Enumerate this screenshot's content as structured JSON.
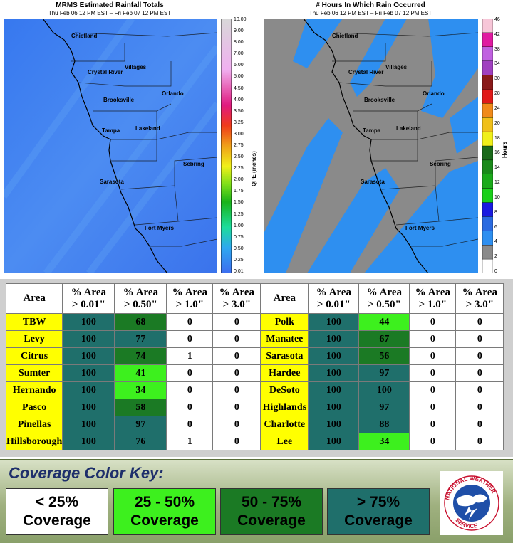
{
  "left_map": {
    "title": "MRMS Estimated Rainfall Totals",
    "subtitle": "Thu Feb 06 12 PM EST – Fri Feb 07 12 PM EST",
    "colorbar_label": "QPE (inches)",
    "colorbar_ticks": [
      "10.00",
      "9.00",
      "8.00",
      "7.00",
      "6.00",
      "5.00",
      "4.50",
      "4.00",
      "3.50",
      "3.25",
      "3.00",
      "2.75",
      "2.50",
      "2.25",
      "2.00",
      "1.75",
      "1.50",
      "1.25",
      "1.00",
      "0.75",
      "0.50",
      "0.25",
      "0.01"
    ],
    "cities": [
      "Chiefland",
      "Villages",
      "Crystal River",
      "Orlando",
      "Brooksville",
      "Tampa",
      "Lakeland",
      "Sebring",
      "Sarasota",
      "Fort Myers"
    ]
  },
  "right_map": {
    "title": "# Hours In Which Rain Occurred",
    "subtitle": "Thu Feb 06 12 PM EST – Fri Feb 07 12 PM EST",
    "colorbar_label": "Hours",
    "colorbar_ticks": [
      "46",
      "42",
      "38",
      "34",
      "30",
      "28",
      "24",
      "20",
      "18",
      "16",
      "14",
      "12",
      "10",
      "8",
      "6",
      "4",
      "2",
      "0"
    ],
    "cities": [
      "Chiefland",
      "Villages",
      "Crystal River",
      "Orlando",
      "Brooksville",
      "Tampa",
      "Lakeland",
      "Sebring",
      "Sarasota",
      "Fort Myers"
    ]
  },
  "chart_data": {
    "type": "table",
    "columns": [
      "Area",
      "% Area > 0.01\"",
      "% Area > 0.50\"",
      "% Area > 1.0\"",
      "% Area > 3.0\""
    ],
    "left_rows": [
      {
        "area": "TBW",
        "p001": 100,
        "p050": 68,
        "p10": 0,
        "p30": 0
      },
      {
        "area": "Levy",
        "p001": 100,
        "p050": 77,
        "p10": 0,
        "p30": 0
      },
      {
        "area": "Citrus",
        "p001": 100,
        "p050": 74,
        "p10": 1,
        "p30": 0
      },
      {
        "area": "Sumter",
        "p001": 100,
        "p050": 41,
        "p10": 0,
        "p30": 0
      },
      {
        "area": "Hernando",
        "p001": 100,
        "p050": 34,
        "p10": 0,
        "p30": 0
      },
      {
        "area": "Pasco",
        "p001": 100,
        "p050": 58,
        "p10": 0,
        "p30": 0
      },
      {
        "area": "Pinellas",
        "p001": 100,
        "p050": 97,
        "p10": 0,
        "p30": 0
      },
      {
        "area": "Hillsborough",
        "p001": 100,
        "p050": 76,
        "p10": 1,
        "p30": 0
      }
    ],
    "right_rows": [
      {
        "area": "Polk",
        "p001": 100,
        "p050": 44,
        "p10": 0,
        "p30": 0
      },
      {
        "area": "Manatee",
        "p001": 100,
        "p050": 67,
        "p10": 0,
        "p30": 0
      },
      {
        "area": "Sarasota",
        "p001": 100,
        "p050": 56,
        "p10": 0,
        "p30": 0
      },
      {
        "area": "Hardee",
        "p001": 100,
        "p050": 97,
        "p10": 0,
        "p30": 0
      },
      {
        "area": "DeSoto",
        "p001": 100,
        "p050": 100,
        "p10": 0,
        "p30": 0
      },
      {
        "area": "Highlands",
        "p001": 100,
        "p050": 97,
        "p10": 0,
        "p30": 0
      },
      {
        "area": "Charlotte",
        "p001": 100,
        "p050": 88,
        "p10": 0,
        "p30": 0
      },
      {
        "area": "Lee",
        "p001": 100,
        "p050": 34,
        "p10": 0,
        "p30": 0
      }
    ]
  },
  "table_headers": {
    "area": "Area",
    "pct_area": "% Area",
    "gt001": "> 0.01\"",
    "gt050": "> 0.50\"",
    "gt10": "> 1.0\"",
    "gt30": "> 3.0\""
  },
  "color_key": {
    "title": "Coverage Color Key:",
    "items": [
      {
        "range": "< 25%",
        "label": "Coverage",
        "bg": "#ffffff",
        "fg": "#000000"
      },
      {
        "range": "25 - 50%",
        "label": "Coverage",
        "bg": "#3df01e",
        "fg": "#000000"
      },
      {
        "range": "50 - 75%",
        "label": "Coverage",
        "bg": "#1b7a24",
        "fg": "#000000"
      },
      {
        "range": "> 75%",
        "label": "Coverage",
        "bg": "#1f6f6b",
        "fg": "#000000"
      }
    ]
  },
  "logo": {
    "text": "NATIONAL WEATHER SERVICE"
  },
  "colors": {
    "map_left_fill": "#3f7df0",
    "map_right_gray": "#8a8a8a",
    "map_right_blue": "#2e8ff0",
    "area_yellow": "#ffff00"
  }
}
